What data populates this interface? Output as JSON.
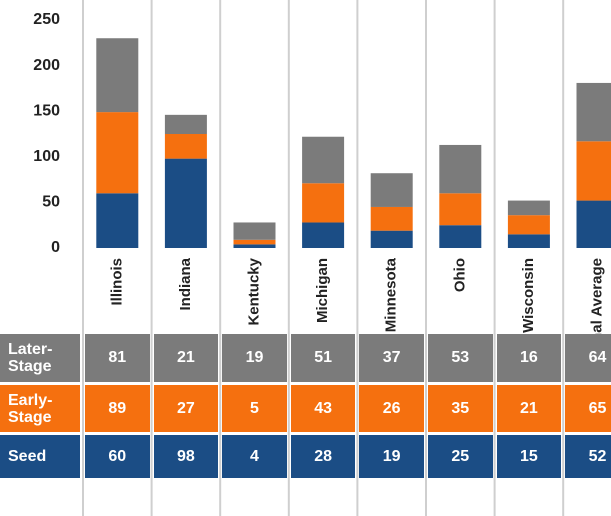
{
  "chart_data": {
    "type": "stacked-bar",
    "categories": [
      "Illinois",
      "Indiana",
      "Kentucky",
      "Michigan",
      "Minnesota",
      "Ohio",
      "Wisconsin",
      "National Average"
    ],
    "series": [
      {
        "name": "Seed",
        "color": "#1b4d85",
        "values": [
          60,
          98,
          4,
          28,
          19,
          25,
          15,
          52
        ]
      },
      {
        "name": "Early-Stage",
        "color": "#f5700f",
        "values": [
          89,
          27,
          5,
          43,
          26,
          35,
          21,
          65
        ]
      },
      {
        "name": "Later-Stage",
        "color": "#7b7b7b",
        "values": [
          81,
          21,
          19,
          51,
          37,
          53,
          16,
          64
        ]
      }
    ],
    "ylim": [
      0,
      250
    ],
    "yticks": [
      0,
      50,
      100,
      150,
      200,
      250
    ]
  }
}
